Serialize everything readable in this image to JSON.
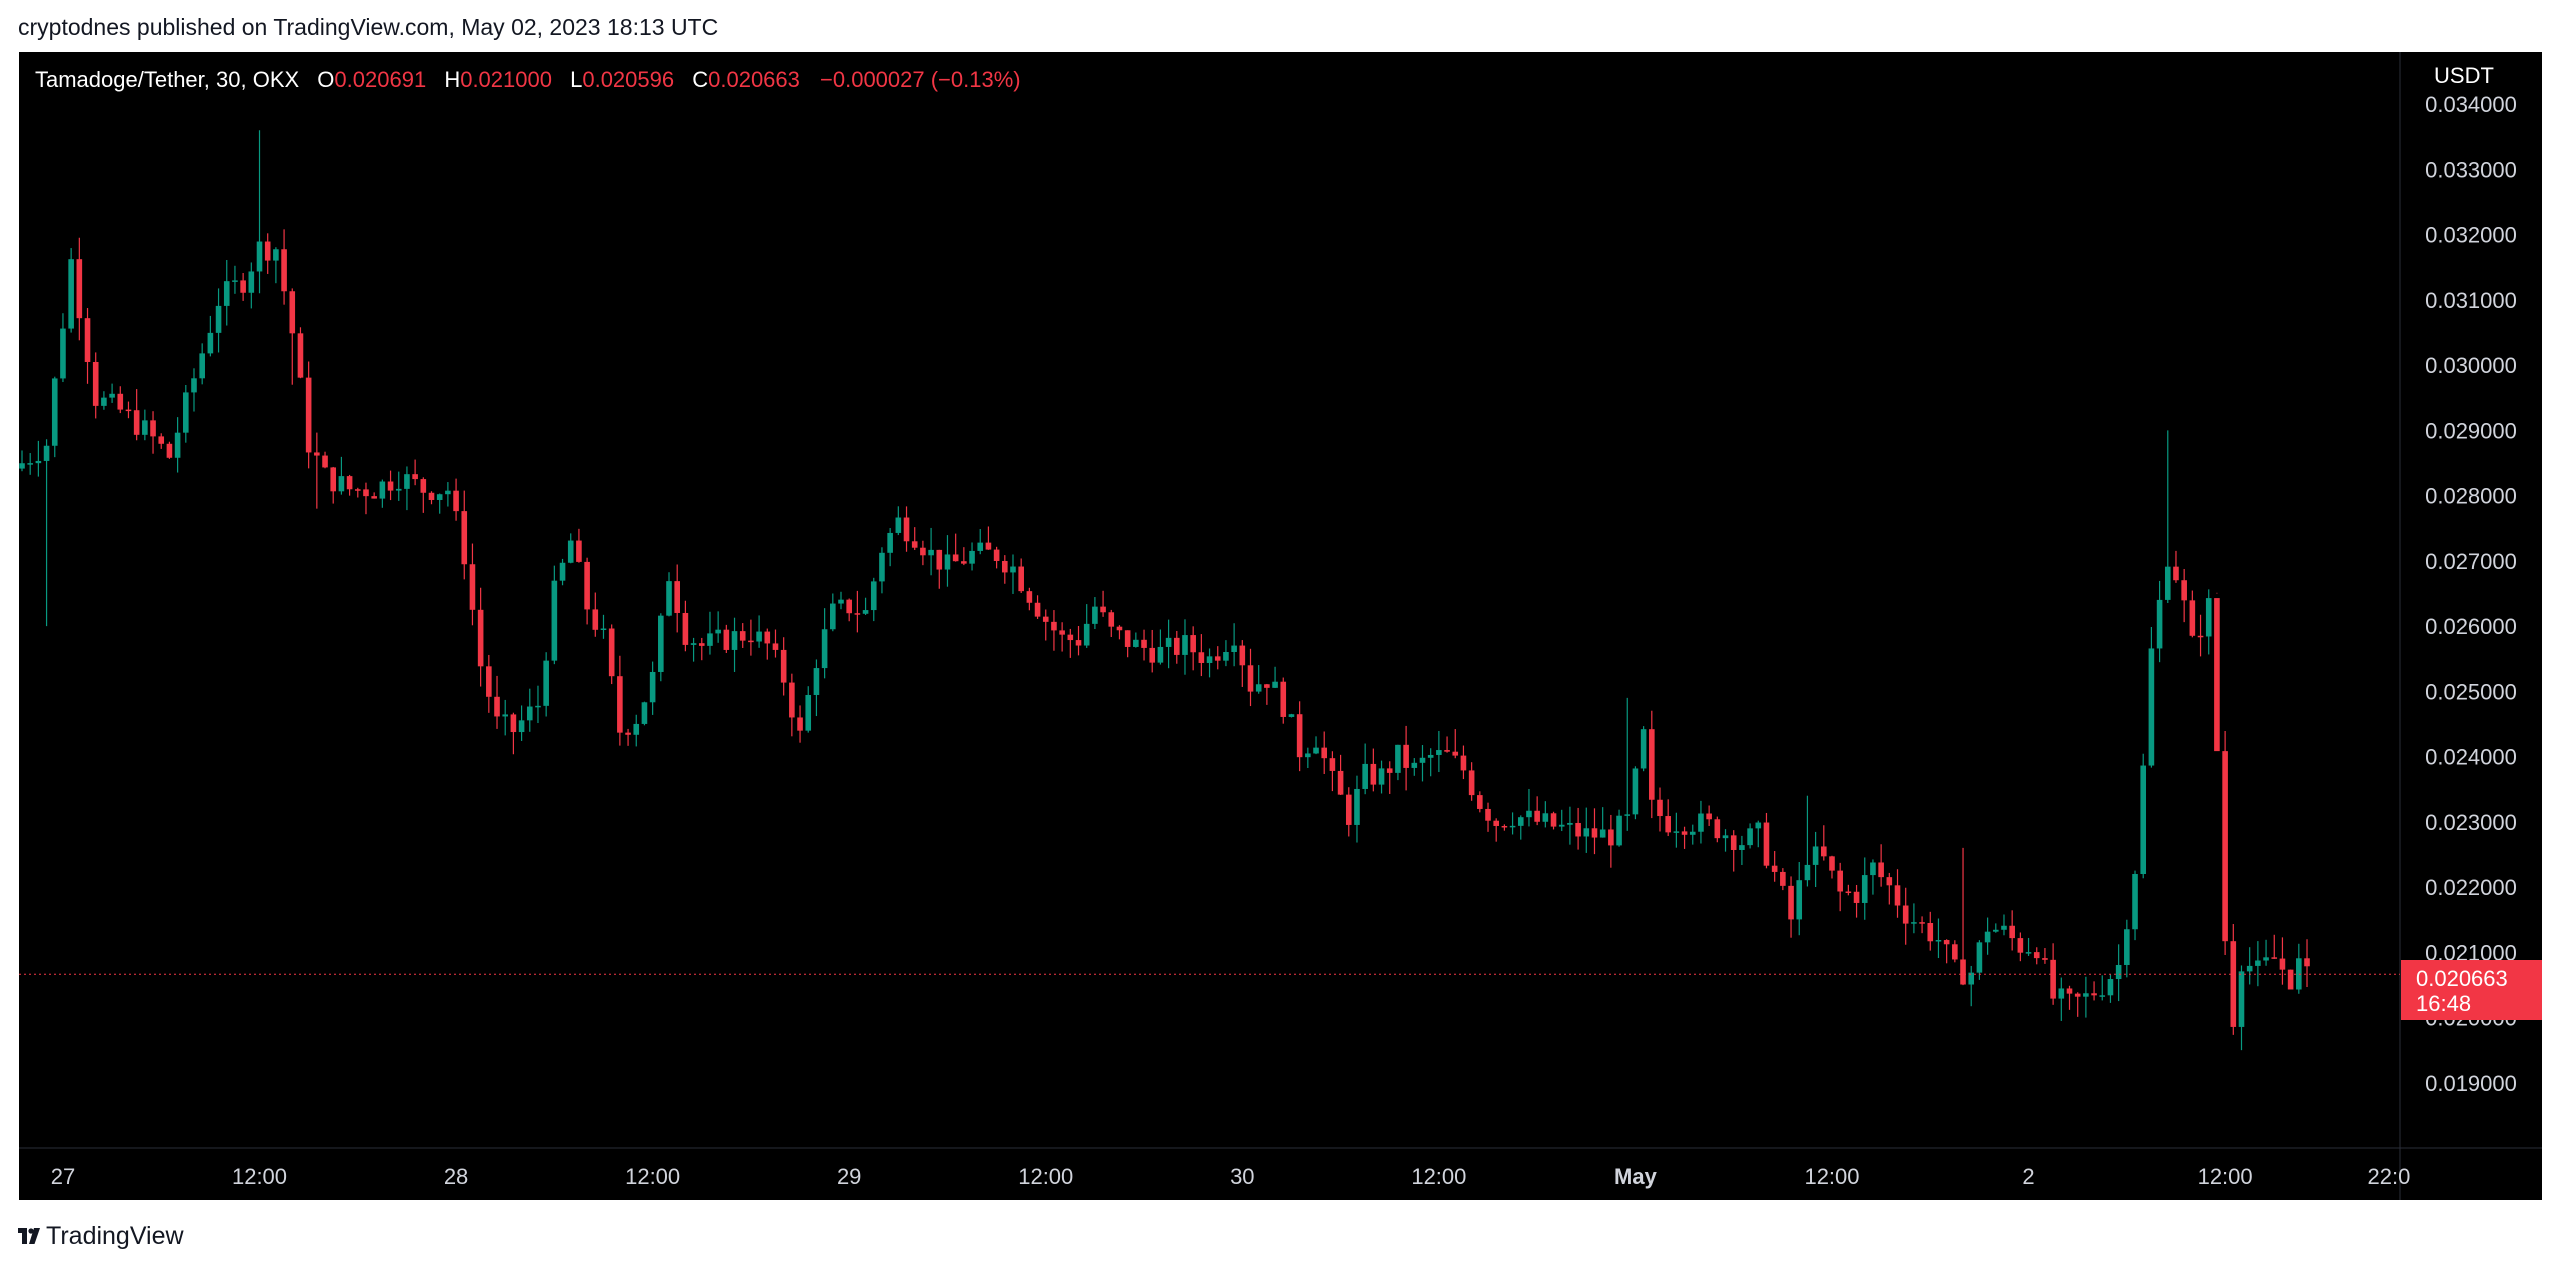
{
  "header": {
    "published_text": "cryptodnes published on TradingView.com, May 02, 2023 18:13 UTC"
  },
  "legend": {
    "symbol": "Tamadoge/Tether, 30, OKX",
    "open_label": "O",
    "open": "0.020691",
    "high_label": "H",
    "high": "0.021000",
    "low_label": "L",
    "low": "0.020596",
    "close_label": "C",
    "close": "0.020663",
    "change": "−0.000027 (−0.13%)"
  },
  "price_axis": {
    "unit": "USDT"
  },
  "last_price": {
    "value": "0.020663",
    "countdown": "16:48"
  },
  "footer": {
    "brand": "TradingView",
    "logo_icon": "tradingview-logo-icon"
  },
  "colors": {
    "up": "#089981",
    "down": "#f23645",
    "background": "#000000",
    "text": "#d1d4dc"
  },
  "chart_data": {
    "type": "candlestick",
    "symbol": "Tamadoge/Tether",
    "interval": "30",
    "exchange": "OKX",
    "ylim": [
      0.018,
      0.0348
    ],
    "yticks": [
      "0.019000",
      "0.020000",
      "0.021000",
      "0.022000",
      "0.023000",
      "0.024000",
      "0.025000",
      "0.026000",
      "0.027000",
      "0.028000",
      "0.029000",
      "0.030000",
      "0.031000",
      "0.032000",
      "0.033000",
      "0.034000"
    ],
    "xticks": [
      {
        "label": "27",
        "bar": 5,
        "bold": false
      },
      {
        "label": "12:00",
        "bar": 29,
        "bold": false
      },
      {
        "label": "28",
        "bar": 53,
        "bold": false
      },
      {
        "label": "12:00",
        "bar": 77,
        "bold": false
      },
      {
        "label": "29",
        "bar": 101,
        "bold": false
      },
      {
        "label": "12:00",
        "bar": 125,
        "bold": false
      },
      {
        "label": "30",
        "bar": 149,
        "bold": false
      },
      {
        "label": "12:00",
        "bar": 173,
        "bold": false
      },
      {
        "label": "May",
        "bar": 197,
        "bold": true
      },
      {
        "label": "12:00",
        "bar": 221,
        "bold": false
      },
      {
        "label": "2",
        "bar": 245,
        "bold": false
      },
      {
        "label": "12:00",
        "bar": 269,
        "bold": false
      },
      {
        "label": "22:0",
        "bar": 289,
        "bold": false
      }
    ],
    "keypoints": [
      [
        0,
        0.0285
      ],
      [
        3,
        0.0288
      ],
      [
        6,
        0.0316
      ],
      [
        9,
        0.0295
      ],
      [
        12,
        0.0293
      ],
      [
        15,
        0.029
      ],
      [
        18,
        0.0286
      ],
      [
        21,
        0.0298
      ],
      [
        24,
        0.031
      ],
      [
        27,
        0.0313
      ],
      [
        29,
        0.0318
      ],
      [
        31,
        0.0318
      ],
      [
        33,
        0.0305
      ],
      [
        35,
        0.0288
      ],
      [
        37,
        0.0283
      ],
      [
        40,
        0.0281
      ],
      [
        43,
        0.0281
      ],
      [
        46,
        0.0283
      ],
      [
        49,
        0.0281
      ],
      [
        52,
        0.0281
      ],
      [
        54,
        0.0271
      ],
      [
        56,
        0.0254
      ],
      [
        58,
        0.0245
      ],
      [
        60,
        0.0244
      ],
      [
        63,
        0.0248
      ],
      [
        65,
        0.0265
      ],
      [
        67,
        0.0273
      ],
      [
        69,
        0.0263
      ],
      [
        71,
        0.0258
      ],
      [
        73,
        0.0244
      ],
      [
        75,
        0.0246
      ],
      [
        77,
        0.0252
      ],
      [
        79,
        0.0268
      ],
      [
        81,
        0.0259
      ],
      [
        83,
        0.0257
      ],
      [
        86,
        0.0258
      ],
      [
        89,
        0.0259
      ],
      [
        91,
        0.0257
      ],
      [
        93,
        0.0252
      ],
      [
        95,
        0.0243
      ],
      [
        97,
        0.0255
      ],
      [
        99,
        0.0262
      ],
      [
        101,
        0.0263
      ],
      [
        103,
        0.0262
      ],
      [
        105,
        0.0272
      ],
      [
        107,
        0.0276
      ],
      [
        109,
        0.0274
      ],
      [
        111,
        0.0271
      ],
      [
        113,
        0.0269
      ],
      [
        116,
        0.0271
      ],
      [
        119,
        0.0271
      ],
      [
        121,
        0.0269
      ],
      [
        123,
        0.0265
      ],
      [
        125,
        0.0261
      ],
      [
        127,
        0.0258
      ],
      [
        129,
        0.0258
      ],
      [
        131,
        0.0263
      ],
      [
        133,
        0.0259
      ],
      [
        136,
        0.0257
      ],
      [
        139,
        0.0256
      ],
      [
        142,
        0.0257
      ],
      [
        145,
        0.0255
      ],
      [
        148,
        0.0259
      ],
      [
        150,
        0.0251
      ],
      [
        152,
        0.0252
      ],
      [
        154,
        0.0248
      ],
      [
        156,
        0.0241
      ],
      [
        158,
        0.0243
      ],
      [
        160,
        0.0236
      ],
      [
        162,
        0.0231
      ],
      [
        164,
        0.0237
      ],
      [
        166,
        0.0237
      ],
      [
        168,
        0.024
      ],
      [
        170,
        0.0238
      ],
      [
        172,
        0.024
      ],
      [
        174,
        0.024
      ],
      [
        176,
        0.0238
      ],
      [
        178,
        0.0233
      ],
      [
        180,
        0.023
      ],
      [
        182,
        0.0231
      ],
      [
        185,
        0.023
      ],
      [
        188,
        0.0229
      ],
      [
        191,
        0.0228
      ],
      [
        194,
        0.0228
      ],
      [
        196,
        0.023
      ],
      [
        198,
        0.0243
      ],
      [
        199,
        0.0232
      ],
      [
        201,
        0.023
      ],
      [
        204,
        0.023
      ],
      [
        207,
        0.0229
      ],
      [
        210,
        0.0227
      ],
      [
        212,
        0.0228
      ],
      [
        214,
        0.0222
      ],
      [
        216,
        0.0215
      ],
      [
        218,
        0.0225
      ],
      [
        220,
        0.0224
      ],
      [
        222,
        0.0219
      ],
      [
        224,
        0.0219
      ],
      [
        226,
        0.0223
      ],
      [
        228,
        0.022
      ],
      [
        230,
        0.0216
      ],
      [
        232,
        0.0214
      ],
      [
        234,
        0.0212
      ],
      [
        236,
        0.0207
      ],
      [
        238,
        0.0207
      ],
      [
        240,
        0.0214
      ],
      [
        242,
        0.0213
      ],
      [
        244,
        0.0211
      ],
      [
        246,
        0.0211
      ],
      [
        248,
        0.0203
      ],
      [
        250,
        0.0202
      ],
      [
        252,
        0.0203
      ],
      [
        254,
        0.0205
      ],
      [
        256,
        0.0208
      ],
      [
        258,
        0.0223
      ],
      [
        259,
        0.0238
      ],
      [
        260,
        0.0256
      ],
      [
        262,
        0.0271
      ],
      [
        263,
        0.0268
      ],
      [
        264,
        0.0263
      ],
      [
        265,
        0.0257
      ],
      [
        267,
        0.0263
      ],
      [
        268,
        0.0241
      ],
      [
        269,
        0.0212
      ],
      [
        270,
        0.02
      ],
      [
        271,
        0.0209
      ],
      [
        273,
        0.0207
      ],
      [
        275,
        0.0209
      ],
      [
        277,
        0.0206
      ],
      [
        278,
        0.0208
      ],
      [
        279,
        0.0206
      ]
    ]
  }
}
